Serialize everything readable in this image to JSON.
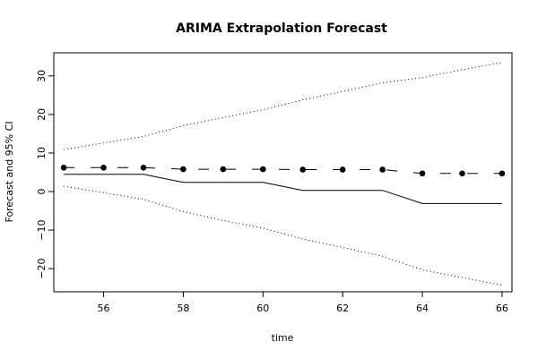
{
  "chart_data": {
    "type": "line",
    "title": "ARIMA Extrapolation Forecast",
    "xlabel": "time",
    "ylabel": "Forecast and 95% CI",
    "xlim": [
      54.75,
      66.25
    ],
    "ylim": [
      -26,
      36
    ],
    "x_ticks": [
      56,
      58,
      60,
      62,
      64,
      66
    ],
    "y_ticks": [
      -20,
      -10,
      0,
      10,
      20,
      30
    ],
    "grid": false,
    "x": [
      55,
      56,
      57,
      58,
      59,
      60,
      61,
      62,
      63,
      64,
      65,
      66
    ],
    "series": [
      {
        "style": "points-dashed",
        "values": [
          6.2,
          6.2,
          6.2,
          5.8,
          5.8,
          5.8,
          5.7,
          5.7,
          5.7,
          4.7,
          4.7,
          4.7
        ]
      },
      {
        "style": "solid",
        "values": [
          4.5,
          4.5,
          4.5,
          2.4,
          2.4,
          2.4,
          0.3,
          0.3,
          0.3,
          -3.1,
          -3.1,
          -3.1
        ]
      },
      {
        "style": "dotted",
        "values": [
          10.9,
          12.6,
          14.3,
          17.1,
          19.2,
          21.2,
          23.8,
          26.0,
          28.2,
          29.6,
          31.6,
          33.5
        ]
      },
      {
        "style": "dotted",
        "values": [
          1.4,
          -0.3,
          -2.0,
          -5.2,
          -7.5,
          -9.5,
          -12.3,
          -14.5,
          -16.8,
          -20.3,
          -22.3,
          -24.3
        ]
      }
    ]
  }
}
